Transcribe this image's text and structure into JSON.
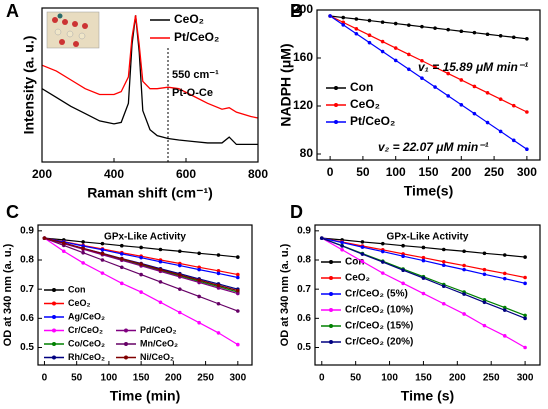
{
  "chart_data": [
    {
      "type": "line",
      "panel_label": "A",
      "xlabel": "Raman shift (cm⁻¹)",
      "ylabel": "Intensity (a. u.)",
      "x": [
        200,
        240,
        280,
        320,
        360,
        400,
        420,
        440,
        450,
        460,
        470,
        480,
        500,
        520,
        550,
        580,
        620,
        660,
        700,
        720,
        740,
        780,
        800
      ],
      "series": [
        {
          "name": "CeO₂",
          "color": "#000000",
          "values": [
            50,
            44,
            38,
            33,
            28,
            26,
            27,
            40,
            80,
            100,
            75,
            35,
            22,
            18,
            16,
            15,
            14,
            13,
            13,
            17,
            12,
            12,
            12
          ]
        },
        {
          "name": "Pt/CeO₂",
          "color": "#ff0000",
          "values": [
            66,
            62,
            56,
            50,
            46,
            46,
            48,
            58,
            85,
            100,
            80,
            55,
            50,
            50,
            51,
            50,
            45,
            40,
            36,
            37,
            34,
            31,
            30
          ]
        }
      ],
      "xlim": [
        200,
        800
      ],
      "xticks": [
        200,
        400,
        600,
        800
      ],
      "ylim": [
        0,
        105
      ],
      "vline": 550,
      "annotations": [
        {
          "text": "550 cm⁻¹",
          "color": "#000000"
        },
        {
          "text": "Pt-O-Ce",
          "color": "#000000"
        }
      ]
    },
    {
      "type": "line",
      "panel_label": "B",
      "xlabel": "Time(s)",
      "ylabel": "NADPH (μM)",
      "x": [
        0,
        20,
        40,
        60,
        80,
        100,
        120,
        140,
        160,
        180,
        200,
        220,
        240,
        260,
        280,
        300
      ],
      "series": [
        {
          "name": "Con",
          "color": "#000000",
          "values": [
            195,
            193.7,
            192.5,
            191.2,
            189.9,
            188.7,
            187.4,
            186.1,
            184.9,
            183.6,
            182.3,
            181.1,
            179.8,
            178.5,
            177.3,
            176
          ]
        },
        {
          "name": "CeO₂",
          "color": "#ff0000",
          "values": [
            195,
            189.7,
            184.3,
            179,
            173.7,
            168.3,
            163,
            157.7,
            152.3,
            147,
            141.7,
            136.3,
            131,
            125.7,
            120.3,
            115
          ]
        },
        {
          "name": "Pt/CeO₂",
          "color": "#0000ff",
          "values": [
            195,
            187.6,
            180.2,
            172.8,
            165.4,
            158,
            150.6,
            143.2,
            135.8,
            128.4,
            121,
            113.6,
            106.2,
            98.8,
            91.4,
            84
          ]
        }
      ],
      "xlim": [
        -20,
        320
      ],
      "xticks": [
        0,
        50,
        100,
        150,
        200,
        250,
        300
      ],
      "ylim": [
        75,
        200
      ],
      "yticks": [
        80,
        120,
        160,
        200
      ],
      "annotations": [
        {
          "text": "v₁ = 15.89 μM min⁻¹",
          "color": "#ff0000"
        },
        {
          "text": "v₂ = 22.07 μM min⁻¹",
          "color": "#0000ff"
        }
      ]
    },
    {
      "type": "line",
      "panel_label": "C",
      "title": "GPx-Like Activity",
      "xlabel": "Time (min)",
      "ylabel": "OD at 340 nm (a. u.)",
      "x": [
        0,
        30,
        60,
        90,
        120,
        150,
        180,
        210,
        240,
        270,
        300
      ],
      "series": [
        {
          "name": "Con",
          "color": "#000000",
          "values": [
            0.875,
            0.869,
            0.862,
            0.856,
            0.849,
            0.843,
            0.836,
            0.83,
            0.823,
            0.817,
            0.81
          ]
        },
        {
          "name": "CeO₂",
          "color": "#ff0000",
          "values": [
            0.875,
            0.863,
            0.85,
            0.838,
            0.825,
            0.813,
            0.8,
            0.788,
            0.775,
            0.763,
            0.75
          ]
        },
        {
          "name": "Ag/CeO₂",
          "color": "#0000ff",
          "values": [
            0.875,
            0.862,
            0.848,
            0.835,
            0.821,
            0.808,
            0.794,
            0.781,
            0.767,
            0.754,
            0.74
          ]
        },
        {
          "name": "Cr/CeO₂",
          "color": "#ff00ff",
          "values": [
            0.875,
            0.83,
            0.79,
            0.755,
            0.72,
            0.69,
            0.655,
            0.62,
            0.585,
            0.55,
            0.51
          ]
        },
        {
          "name": "Co/CeO₂",
          "color": "#008000",
          "values": [
            0.875,
            0.857,
            0.838,
            0.82,
            0.801,
            0.783,
            0.764,
            0.746,
            0.727,
            0.709,
            0.69
          ]
        },
        {
          "name": "Rh/CeO₂",
          "color": "#000080",
          "values": [
            0.875,
            0.858,
            0.84,
            0.823,
            0.805,
            0.788,
            0.77,
            0.753,
            0.735,
            0.718,
            0.7
          ]
        },
        {
          "name": "Pd/CeO₂",
          "color": "#800080",
          "values": [
            0.875,
            0.856,
            0.837,
            0.818,
            0.799,
            0.78,
            0.761,
            0.742,
            0.723,
            0.704,
            0.685
          ]
        },
        {
          "name": "Mn/CeO₂",
          "color": "#660066",
          "values": [
            0.875,
            0.85,
            0.825,
            0.8,
            0.775,
            0.75,
            0.725,
            0.7,
            0.675,
            0.65,
            0.625
          ]
        },
        {
          "name": "Ni/CeO₂",
          "color": "#800000",
          "values": [
            0.875,
            0.858,
            0.84,
            0.822,
            0.804,
            0.786,
            0.767,
            0.749,
            0.731,
            0.713,
            0.695
          ]
        }
      ],
      "xlim": [
        -10,
        322
      ],
      "xticks": [
        0,
        50,
        100,
        150,
        200,
        250,
        300
      ],
      "ylim": [
        0.44,
        0.92
      ],
      "yticks": [
        0.5,
        0.6,
        0.7,
        0.8,
        0.9
      ]
    },
    {
      "type": "line",
      "panel_label": "D",
      "title": "GPx-Like Activity",
      "xlabel": "Time (s)",
      "ylabel": "OD at 340 nm (a. u.)",
      "x": [
        0,
        30,
        60,
        90,
        120,
        150,
        180,
        210,
        240,
        270,
        300
      ],
      "series": [
        {
          "name": "Con",
          "color": "#000000",
          "values": [
            0.875,
            0.869,
            0.862,
            0.856,
            0.849,
            0.843,
            0.836,
            0.83,
            0.823,
            0.817,
            0.81
          ]
        },
        {
          "name": "CeO₂",
          "color": "#ff0000",
          "values": [
            0.875,
            0.862,
            0.848,
            0.835,
            0.821,
            0.808,
            0.794,
            0.781,
            0.767,
            0.754,
            0.74
          ]
        },
        {
          "name": "Cr/CeO₂ (5%)",
          "color": "#0000ff",
          "values": [
            0.875,
            0.86,
            0.844,
            0.829,
            0.813,
            0.798,
            0.782,
            0.767,
            0.751,
            0.736,
            0.72
          ]
        },
        {
          "name": "Cr/CeO₂ (10%)",
          "color": "#ff00ff",
          "values": [
            0.875,
            0.835,
            0.795,
            0.755,
            0.72,
            0.685,
            0.65,
            0.615,
            0.575,
            0.54,
            0.5
          ]
        },
        {
          "name": "Cr/CeO₂ (15%)",
          "color": "#008000",
          "values": [
            0.875,
            0.849,
            0.822,
            0.796,
            0.769,
            0.743,
            0.716,
            0.69,
            0.663,
            0.637,
            0.61
          ]
        },
        {
          "name": "Cr/CeO₂ (20%)",
          "color": "#000080",
          "values": [
            0.875,
            0.848,
            0.82,
            0.793,
            0.765,
            0.738,
            0.71,
            0.683,
            0.655,
            0.628,
            0.6
          ]
        }
      ],
      "xlim": [
        -10,
        322
      ],
      "xticks": [
        0,
        50,
        100,
        150,
        200,
        250,
        300
      ],
      "ylim": [
        0.44,
        0.92
      ],
      "yticks": [
        0.5,
        0.6,
        0.7,
        0.8,
        0.9
      ]
    }
  ]
}
